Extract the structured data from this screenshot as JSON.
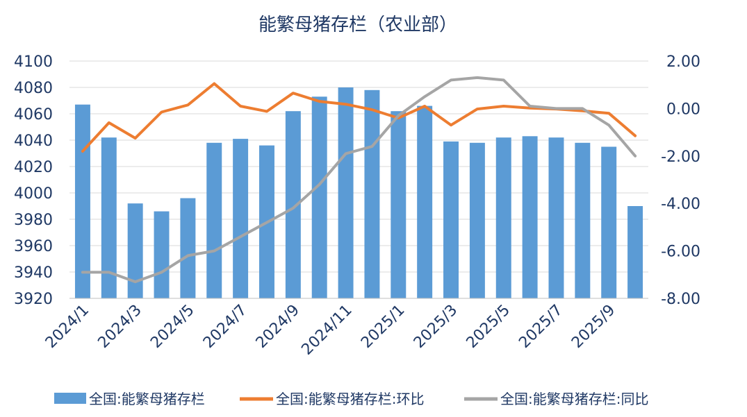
{
  "chart_data": {
    "type": "bar+line",
    "title": "能繁母猪存栏（农业部）",
    "categories": [
      "2024/1",
      "2024/2",
      "2024/3",
      "2024/4",
      "2024/5",
      "2024/6",
      "2024/7",
      "2024/8",
      "2024/9",
      "2024/10",
      "2024/11",
      "2024/12",
      "2025/1",
      "2025/2",
      "2025/3",
      "2025/4",
      "2025/5",
      "2025/6",
      "2025/7",
      "2025/8",
      "2025/9",
      "2025/10"
    ],
    "x_tick_labels": [
      "2024/1",
      "2024/3",
      "2024/5",
      "2024/7",
      "2024/9",
      "2024/11",
      "2025/1",
      "2025/3",
      "2025/5",
      "2025/7",
      "2025/9"
    ],
    "left_axis": {
      "min": 3920,
      "max": 4100,
      "ticks": [
        "3920",
        "3940",
        "3960",
        "3980",
        "4000",
        "4020",
        "4040",
        "4060",
        "4080",
        "4100"
      ]
    },
    "right_axis": {
      "min": -8,
      "max": 2,
      "ticks": [
        "2.00",
        "0.00",
        "-2.00",
        "-4.00",
        "-6.00",
        "-8.00"
      ]
    },
    "series": [
      {
        "name": "全国:能繁母猪存栏",
        "kind": "bar",
        "axis": "left",
        "color": "#5b9bd5",
        "values": [
          4067,
          4042,
          3992,
          3986,
          3996,
          4038,
          4041,
          4036,
          4062,
          4073,
          4080,
          4078,
          4062,
          4066,
          4039,
          4038,
          4042,
          4043,
          4042,
          4038,
          4035,
          3990
        ]
      },
      {
        "name": "全国:能繁母猪存栏:环比",
        "kind": "line",
        "axis": "right",
        "color": "#ed7d31",
        "values": [
          -1.8,
          -0.6,
          -1.25,
          -0.15,
          0.15,
          1.05,
          0.1,
          -0.12,
          0.65,
          0.3,
          0.18,
          -0.05,
          -0.4,
          0.1,
          -0.7,
          -0.02,
          0.1,
          0.02,
          -0.02,
          -0.1,
          -0.2,
          -1.15
        ]
      },
      {
        "name": "全国:能繁母猪存栏:同比",
        "kind": "line",
        "axis": "right",
        "color": "#a5a5a5",
        "values": [
          -6.9,
          -6.9,
          -7.3,
          -6.9,
          -6.2,
          -6.0,
          -5.4,
          -4.8,
          -4.2,
          -3.2,
          -1.9,
          -1.6,
          -0.3,
          0.5,
          1.2,
          1.3,
          1.2,
          0.1,
          0.0,
          0.0,
          -0.7,
          -2.0
        ]
      }
    ],
    "legend_position": "bottom",
    "grid": true
  }
}
